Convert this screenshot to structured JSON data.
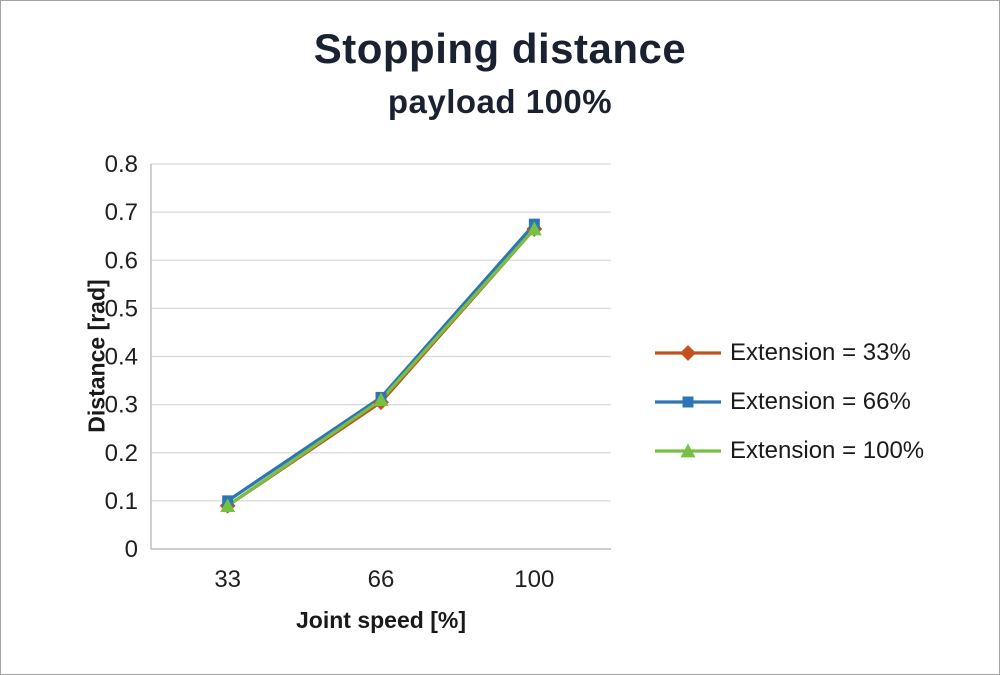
{
  "chart_data": {
    "type": "line",
    "title": "Stopping distance",
    "subtitle": "payload 100%",
    "xlabel": "Joint speed [%]",
    "ylabel": "Distance [rad]",
    "categories": [
      "33",
      "66",
      "100"
    ],
    "ylim": [
      0,
      0.8
    ],
    "ytick_values": [
      0,
      0.1,
      0.2,
      0.3,
      0.4,
      0.5,
      0.6,
      0.7,
      0.8
    ],
    "ytick_labels": [
      "0",
      "0.1",
      "0.2",
      "0.3",
      "0.4",
      "0.5",
      "0.6",
      "0.7",
      "0.8"
    ],
    "grid": true,
    "legend_position": "right",
    "series": [
      {
        "name": "Extension = 33%",
        "values": [
          0.09,
          0.305,
          0.665
        ],
        "color": "#c0531c",
        "marker": "diamond"
      },
      {
        "name": "Extension = 66%",
        "values": [
          0.1,
          0.315,
          0.675
        ],
        "color": "#2e75b6",
        "marker": "square"
      },
      {
        "name": "Extension = 100%",
        "values": [
          0.09,
          0.31,
          0.665
        ],
        "color": "#77c043",
        "marker": "triangle"
      }
    ]
  },
  "colors": {
    "grid": "#d9d9d9",
    "axis": "#bfbfbf",
    "tick_text": "#1f1f1f",
    "title_text": "#1a2130",
    "border": "#a3a3a3",
    "background": "#ffffff"
  }
}
